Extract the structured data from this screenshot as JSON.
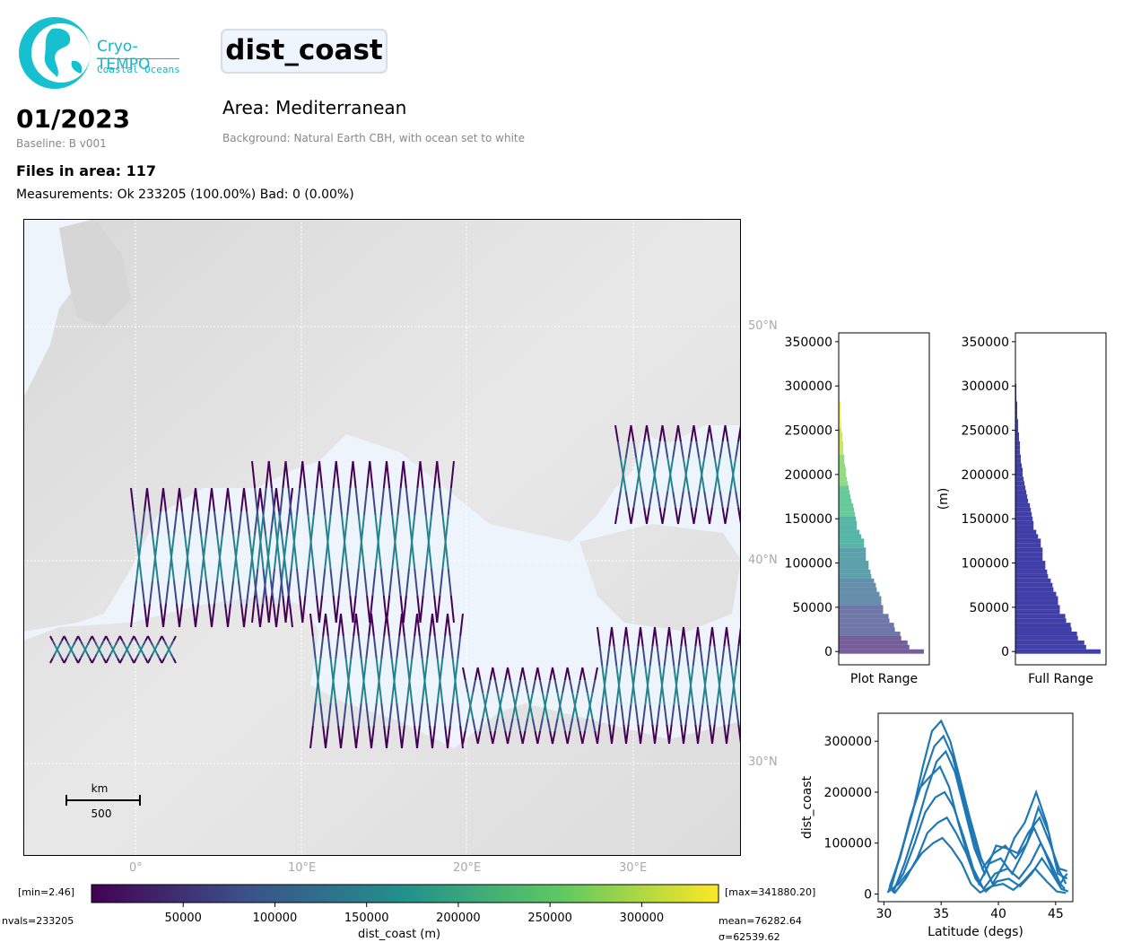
{
  "logo": {
    "line1": "Cryo-TEMPO",
    "line2": "Coastal Oceans"
  },
  "header": {
    "parameter": "dist_coast",
    "date": "01/2023",
    "baseline": "Baseline: B v001",
    "area": "Area: Mediterranean",
    "background": "Background: Natural Earth CBH, with ocean set to white",
    "files": "Files in area: 117",
    "measurements": "Measurements: Ok 233205 (100.00%) Bad: 0 (0.00%)"
  },
  "map": {
    "lat_labels": [
      "50°N",
      "40°N",
      "30°N"
    ],
    "lon_labels": [
      "0°",
      "10°E",
      "20°E",
      "30°E"
    ],
    "scalebar": {
      "unit": "km",
      "value": "500"
    }
  },
  "colorbar": {
    "min_label": "[min=2.46]",
    "max_label": "[max=341880.20]",
    "nvals": "nvals=233205",
    "mean": "mean=76282.64",
    "sigma": "σ=62539.62",
    "ticks": [
      "50000",
      "100000",
      "150000",
      "200000",
      "250000",
      "300000"
    ],
    "label": "dist_coast (m)",
    "colormap": [
      "#440154",
      "#3b528b",
      "#21918c",
      "#5ec962",
      "#fde725"
    ]
  },
  "chart_data": [
    {
      "type": "bar",
      "orientation": "horizontal-histogram",
      "xlabel": "Plot Range",
      "ylabel": "",
      "ylim": [
        -15000,
        360000
      ],
      "yticks": [
        "0",
        "50000",
        "100000",
        "150000",
        "200000",
        "250000",
        "300000",
        "350000"
      ],
      "colormap": "viridis",
      "bin_centers": [
        0,
        5000,
        10000,
        15000,
        20000,
        25000,
        30000,
        35000,
        40000,
        45000,
        50000,
        55000,
        60000,
        65000,
        70000,
        75000,
        80000,
        85000,
        90000,
        95000,
        100000,
        105000,
        110000,
        115000,
        120000,
        125000,
        130000,
        135000,
        140000,
        145000,
        150000,
        155000,
        160000,
        165000,
        170000,
        175000,
        180000,
        185000,
        190000,
        195000,
        200000,
        205000,
        210000,
        215000,
        220000,
        225000,
        230000,
        235000,
        240000,
        245000,
        250000,
        255000,
        260000,
        265000,
        270000,
        275000,
        280000,
        285000,
        290000,
        295000,
        300000
      ],
      "values": [
        0.94,
        0.78,
        0.76,
        0.69,
        0.68,
        0.62,
        0.61,
        0.56,
        0.55,
        0.49,
        0.49,
        0.47,
        0.47,
        0.45,
        0.42,
        0.41,
        0.39,
        0.36,
        0.35,
        0.33,
        0.33,
        0.3,
        0.3,
        0.3,
        0.28,
        0.28,
        0.25,
        0.23,
        0.2,
        0.2,
        0.19,
        0.18,
        0.17,
        0.16,
        0.14,
        0.13,
        0.12,
        0.11,
        0.1,
        0.09,
        0.08,
        0.08,
        0.07,
        0.06,
        0.06,
        0.05,
        0.05,
        0.05,
        0.04,
        0.04,
        0.03,
        0.03,
        0.03,
        0.02,
        0.02,
        0.02,
        0.02,
        0.01,
        0.01,
        0.01,
        0.01
      ]
    },
    {
      "type": "bar",
      "orientation": "horizontal-histogram",
      "xlabel": "Full Range",
      "ylabel": "(m)",
      "ylim": [
        -15000,
        360000
      ],
      "yticks": [
        "0",
        "50000",
        "100000",
        "150000",
        "200000",
        "250000",
        "300000",
        "350000"
      ],
      "color": "#3f3fa7",
      "bin_centers": [
        0,
        5000,
        10000,
        15000,
        20000,
        25000,
        30000,
        35000,
        40000,
        45000,
        50000,
        55000,
        60000,
        65000,
        70000,
        75000,
        80000,
        85000,
        90000,
        95000,
        100000,
        105000,
        110000,
        115000,
        120000,
        125000,
        130000,
        135000,
        140000,
        145000,
        150000,
        155000,
        160000,
        165000,
        170000,
        175000,
        180000,
        185000,
        190000,
        195000,
        200000,
        205000,
        210000,
        215000,
        220000,
        225000,
        230000,
        235000,
        240000,
        245000,
        250000,
        255000,
        260000,
        265000,
        270000,
        275000,
        280000,
        285000,
        290000,
        295000,
        300000
      ],
      "values": [
        0.94,
        0.78,
        0.76,
        0.69,
        0.68,
        0.62,
        0.61,
        0.56,
        0.55,
        0.49,
        0.49,
        0.47,
        0.47,
        0.45,
        0.42,
        0.41,
        0.39,
        0.36,
        0.35,
        0.33,
        0.33,
        0.3,
        0.3,
        0.3,
        0.28,
        0.28,
        0.25,
        0.23,
        0.2,
        0.2,
        0.19,
        0.18,
        0.17,
        0.16,
        0.14,
        0.13,
        0.12,
        0.11,
        0.1,
        0.09,
        0.08,
        0.08,
        0.07,
        0.06,
        0.06,
        0.05,
        0.05,
        0.05,
        0.04,
        0.04,
        0.03,
        0.03,
        0.03,
        0.02,
        0.02,
        0.02,
        0.02,
        0.01,
        0.01,
        0.01,
        0.01
      ]
    },
    {
      "type": "line",
      "xlabel": "Latitude (degs)",
      "ylabel": "dist_coast",
      "xlim": [
        29.5,
        46.5
      ],
      "ylim": [
        -15000,
        355000
      ],
      "xticks": [
        "30",
        "35",
        "40",
        "45"
      ],
      "yticks": [
        "0",
        "100000",
        "200000",
        "300000"
      ],
      "color": "#1f77b4",
      "series": [
        {
          "x": [
            30.4,
            31.5,
            32.5,
            33.4,
            34.2,
            35.0,
            35.8,
            36.6,
            37.5,
            38.5,
            39.5,
            40.5,
            41.4,
            42.3,
            43.3,
            44.2,
            45.0,
            45.9
          ],
          "y": [
            5000,
            80000,
            160000,
            250000,
            320000,
            340000,
            300000,
            230000,
            150000,
            70000,
            20000,
            60000,
            110000,
            140000,
            200000,
            140000,
            60000,
            20000
          ]
        },
        {
          "x": [
            30.6,
            31.6,
            32.6,
            33.5,
            34.4,
            35.2,
            36.0,
            36.8,
            37.7,
            38.6,
            39.6,
            40.6,
            41.5,
            42.5,
            43.5,
            44.4,
            45.2,
            46.0
          ],
          "y": [
            10000,
            90000,
            170000,
            230000,
            290000,
            310000,
            270000,
            200000,
            120000,
            50000,
            80000,
            95000,
            70000,
            100000,
            170000,
            120000,
            40000,
            30000
          ]
        },
        {
          "x": [
            30.8,
            31.8,
            32.8,
            33.7,
            34.6,
            35.4,
            36.2,
            37.0,
            37.9,
            38.8,
            39.8,
            40.7,
            41.7,
            42.6,
            43.6,
            44.5,
            45.3,
            46.0
          ],
          "y": [
            2000,
            60000,
            130000,
            200000,
            260000,
            280000,
            240000,
            170000,
            90000,
            40000,
            95000,
            90000,
            80000,
            120000,
            150000,
            100000,
            50000,
            45000
          ]
        },
        {
          "x": [
            30.5,
            31.4,
            32.3,
            33.2,
            34.0,
            34.9,
            35.7,
            36.5,
            37.4,
            38.3,
            39.2,
            40.2,
            41.2,
            42.1,
            43.1,
            44.1,
            45.0,
            45.8
          ],
          "y": [
            15000,
            70000,
            150000,
            210000,
            230000,
            250000,
            210000,
            140000,
            70000,
            20000,
            60000,
            70000,
            40000,
            80000,
            130000,
            80000,
            30000,
            10000
          ]
        },
        {
          "x": [
            30.7,
            31.7,
            32.7,
            33.6,
            34.5,
            35.3,
            36.1,
            37.0,
            37.8,
            38.7,
            39.7,
            40.8,
            41.8,
            42.8,
            43.7,
            44.6,
            45.4,
            46.0
          ],
          "y": [
            5000,
            40000,
            100000,
            160000,
            190000,
            200000,
            170000,
            110000,
            50000,
            10000,
            40000,
            50000,
            30000,
            60000,
            100000,
            60000,
            20000,
            40000
          ]
        },
        {
          "x": [
            30.9,
            31.9,
            32.9,
            33.8,
            34.7,
            35.5,
            36.3,
            37.2,
            38.0,
            38.9,
            39.9,
            40.9,
            41.9,
            42.9,
            43.8,
            44.7,
            45.5,
            46.1
          ],
          "y": [
            1000,
            30000,
            70000,
            120000,
            140000,
            150000,
            120000,
            80000,
            30000,
            5000,
            25000,
            30000,
            15000,
            40000,
            70000,
            40000,
            10000,
            5000
          ]
        },
        {
          "x": [
            30.3,
            31.3,
            32.4,
            33.3,
            34.3,
            35.1,
            35.9,
            36.8,
            37.6,
            38.4,
            39.4,
            40.4,
            41.3,
            42.2,
            43.2,
            44.2,
            45.1,
            45.9
          ],
          "y": [
            3000,
            20000,
            50000,
            80000,
            100000,
            110000,
            90000,
            60000,
            20000,
            3000,
            15000,
            20000,
            8000,
            25000,
            50000,
            25000,
            5000,
            2000
          ]
        }
      ]
    }
  ]
}
